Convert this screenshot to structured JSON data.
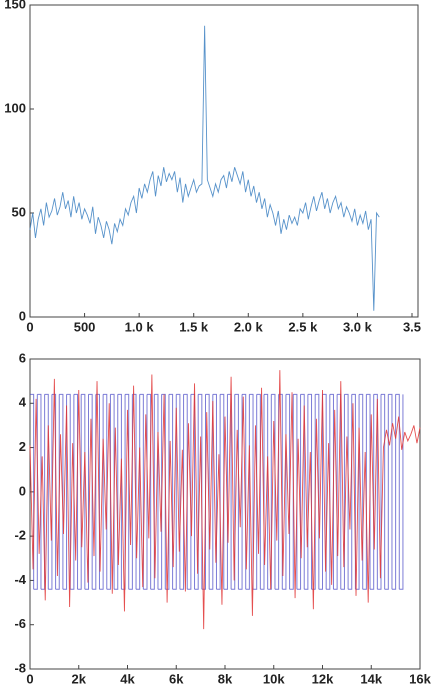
{
  "chart_data": [
    {
      "type": "line",
      "x": [
        0,
        25,
        50,
        75,
        100,
        125,
        150,
        175,
        200,
        225,
        250,
        275,
        300,
        325,
        350,
        375,
        400,
        425,
        450,
        475,
        500,
        525,
        550,
        575,
        600,
        625,
        650,
        675,
        700,
        725,
        750,
        775,
        800,
        825,
        850,
        875,
        900,
        925,
        950,
        975,
        1000,
        1025,
        1050,
        1075,
        1100,
        1125,
        1150,
        1175,
        1200,
        1225,
        1250,
        1275,
        1300,
        1325,
        1350,
        1375,
        1400,
        1425,
        1450,
        1475,
        1500,
        1525,
        1550,
        1575,
        1600,
        1625,
        1650,
        1675,
        1700,
        1725,
        1750,
        1775,
        1800,
        1825,
        1850,
        1875,
        1900,
        1925,
        1950,
        1975,
        2000,
        2025,
        2050,
        2075,
        2100,
        2125,
        2150,
        2175,
        2200,
        2225,
        2250,
        2275,
        2300,
        2325,
        2350,
        2375,
        2400,
        2425,
        2450,
        2475,
        2500,
        2525,
        2550,
        2575,
        2600,
        2625,
        2650,
        2675,
        2700,
        2725,
        2750,
        2775,
        2800,
        2825,
        2850,
        2875,
        2900,
        2925,
        2950,
        2975,
        3000,
        3025,
        3050,
        3075,
        3100,
        3125,
        3150,
        3175,
        3200
      ],
      "series": [
        {
          "color": "#3a7fc1",
          "values": [
            42,
            50,
            38,
            47,
            52,
            44,
            55,
            48,
            51,
            57,
            49,
            53,
            60,
            52,
            56,
            48,
            58,
            50,
            55,
            47,
            52,
            49,
            45,
            53,
            40,
            48,
            44,
            38,
            46,
            42,
            35,
            45,
            41,
            47,
            44,
            52,
            49,
            55,
            58,
            50,
            62,
            57,
            64,
            60,
            66,
            70,
            58,
            68,
            63,
            72,
            65,
            69,
            66,
            70,
            60,
            67,
            55,
            64,
            58,
            62,
            66,
            60,
            63,
            64,
            140,
            66,
            62,
            58,
            64,
            60,
            66,
            68,
            62,
            70,
            65,
            72,
            68,
            64,
            70,
            60,
            66,
            58,
            63,
            55,
            60,
            52,
            57,
            48,
            54,
            50,
            44,
            51,
            40,
            47,
            42,
            49,
            45,
            48,
            44,
            52,
            50,
            55,
            47,
            53,
            58,
            51,
            56,
            60,
            52,
            57,
            50,
            55,
            58,
            52,
            55,
            48,
            53,
            50,
            46,
            52,
            44,
            49,
            45,
            51,
            42,
            47,
            3,
            50,
            48
          ]
        }
      ],
      "xlim": [
        0,
        3500
      ],
      "ylim": [
        0,
        150
      ],
      "xticks": [
        0,
        500,
        {
          "value": 1000,
          "label": "1.0 k"
        },
        {
          "value": 1500,
          "label": "1.5 k"
        },
        {
          "value": 2000,
          "label": "2.0 k"
        },
        {
          "value": 2500,
          "label": "2.5 k"
        },
        {
          "value": 3000,
          "label": "3.0 k"
        },
        {
          "value": 3500,
          "label": "3.5"
        }
      ],
      "yticks": [
        0,
        50,
        100,
        150
      ]
    },
    {
      "type": "line",
      "series": [
        {
          "color": "#5050c8",
          "drawstyle": "steps-post",
          "x": [
            0,
            150,
            300,
            450,
            600,
            750,
            900,
            1050,
            1200,
            1350,
            1500,
            1650,
            1800,
            1950,
            2100,
            2250,
            2400,
            2550,
            2700,
            2850,
            3000,
            3150,
            3300,
            3450,
            3600,
            3750,
            3900,
            4050,
            4200,
            4350,
            4500,
            4650,
            4800,
            4950,
            5100,
            5250,
            5400,
            5550,
            5700,
            5850,
            6000,
            6150,
            6300,
            6450,
            6600,
            6750,
            6900,
            7050,
            7200,
            7350,
            7500,
            7650,
            7800,
            7950,
            8100,
            8250,
            8400,
            8550,
            8700,
            8850,
            9000,
            9150,
            9300,
            9450,
            9600,
            9750,
            9900,
            10050,
            10200,
            10350,
            10500,
            10650,
            10800,
            10950,
            11100,
            11250,
            11400,
            11550,
            11700,
            11850,
            12000,
            12150,
            12300,
            12450,
            12600,
            12750,
            12900,
            13050,
            13200,
            13350,
            13500,
            13650,
            13800,
            13950,
            14100,
            14250,
            14400,
            14550,
            14700,
            14850,
            15000,
            15150,
            15300
          ],
          "values": [
            4.4,
            -4.4,
            4.4,
            -4.4,
            4.4,
            -4.4,
            4.4,
            -4.4,
            4.4,
            -4.4,
            4.4,
            -4.4,
            4.4,
            -4.4,
            4.4,
            -4.4,
            4.4,
            -4.4,
            4.4,
            -4.4,
            4.4,
            -4.4,
            4.4,
            -4.4,
            4.4,
            -4.4,
            4.4,
            -4.4,
            4.4,
            -4.4,
            4.4,
            -4.4,
            4.4,
            -4.4,
            4.4,
            -4.4,
            4.4,
            -4.4,
            4.4,
            -4.4,
            4.4,
            -4.4,
            4.4,
            -4.4,
            4.4,
            -4.4,
            4.4,
            -4.4,
            4.4,
            -4.4,
            4.4,
            -4.4,
            4.4,
            -4.4,
            4.4,
            -4.4,
            4.4,
            -4.4,
            4.4,
            -4.4,
            4.4,
            -4.4,
            4.4,
            -4.4,
            4.4,
            -4.4,
            4.4,
            -4.4,
            4.4,
            -4.4,
            4.4,
            -4.4,
            4.4,
            -4.4,
            4.4,
            -4.4,
            4.4,
            -4.4,
            4.4,
            -4.4,
            4.4,
            -4.4,
            4.4,
            -4.4,
            4.4,
            -4.4,
            4.4,
            -4.4,
            4.4,
            -4.4,
            4.4,
            -4.4,
            4.4,
            -4.4,
            4.4,
            -4.4,
            4.4,
            -4.4,
            4.4,
            -4.4,
            4.4,
            -4.4,
            4.4
          ]
        },
        {
          "color": "#e03030",
          "x": [
            0,
            125,
            250,
            375,
            500,
            625,
            750,
            875,
            1000,
            1125,
            1250,
            1375,
            1500,
            1625,
            1750,
            1875,
            2000,
            2125,
            2250,
            2375,
            2500,
            2625,
            2750,
            2875,
            3000,
            3125,
            3250,
            3375,
            3500,
            3625,
            3750,
            3875,
            4000,
            4125,
            4250,
            4375,
            4500,
            4625,
            4750,
            4875,
            5000,
            5125,
            5250,
            5375,
            5500,
            5625,
            5750,
            5875,
            6000,
            6125,
            6250,
            6375,
            6500,
            6625,
            6750,
            6875,
            7000,
            7125,
            7250,
            7375,
            7500,
            7625,
            7750,
            7875,
            8000,
            8125,
            8250,
            8375,
            8500,
            8625,
            8750,
            8875,
            9000,
            9125,
            9250,
            9375,
            9500,
            9625,
            9750,
            9875,
            10000,
            10125,
            10250,
            10375,
            10500,
            10625,
            10750,
            10875,
            11000,
            11125,
            11250,
            11375,
            11500,
            11625,
            11750,
            11875,
            12000,
            12125,
            12250,
            12375,
            12500,
            12625,
            12750,
            12875,
            13000,
            13125,
            13250,
            13375,
            13500,
            13625,
            13750,
            13875,
            14000,
            14125,
            14250,
            14375,
            14500,
            14625,
            14750,
            14875,
            15000,
            15125,
            15250,
            15375,
            15500,
            15625,
            15750,
            15875,
            16000
          ],
          "values": [
            2.1,
            -3.5,
            4.2,
            -2.8,
            1.6,
            -4.9,
            3.0,
            -2.2,
            5.1,
            -3.8,
            2.6,
            -1.9,
            3.9,
            -5.2,
            2.2,
            -3.1,
            4.6,
            -2.5,
            1.8,
            -4.1,
            3.3,
            -2.9,
            5.0,
            -3.6,
            2.4,
            -1.7,
            4.0,
            -4.6,
            2.9,
            -3.3,
            1.5,
            -5.4,
            3.7,
            -2.4,
            4.8,
            -3.0,
            2.0,
            -4.3,
            3.5,
            -2.1,
            5.3,
            -3.9,
            2.7,
            -1.8,
            4.4,
            -5.0,
            2.3,
            -3.4,
            3.8,
            -2.7,
            1.9,
            -4.5,
            3.1,
            -2.0,
            4.9,
            -3.7,
            2.5,
            -6.2,
            3.6,
            -2.6,
            4.1,
            -3.2,
            1.7,
            -5.1,
            3.4,
            -2.3,
            5.2,
            -4.0,
            2.8,
            -1.6,
            4.3,
            -3.5,
            2.1,
            -5.6,
            3.0,
            -2.8,
            4.7,
            -3.3,
            1.6,
            -4.4,
            3.2,
            -2.2,
            5.5,
            -3.8,
            2.6,
            -1.9,
            4.5,
            -4.8,
            2.4,
            -3.0,
            3.9,
            -2.5,
            1.8,
            -5.3,
            3.3,
            -2.1,
            4.6,
            -3.6,
            2.2,
            -4.2,
            3.7,
            -2.9,
            5.0,
            -3.4,
            2.5,
            -1.7,
            4.0,
            -4.7,
            2.9,
            -3.1,
            1.8,
            -5.0,
            3.5,
            -2.6,
            4.2,
            -3.9,
            2.0,
            2.8,
            2.1,
            3.1,
            2.4,
            3.4,
            1.9,
            2.7,
            2.3,
            2.6,
            3.0,
            2.2,
            2.9
          ]
        }
      ],
      "xlim": [
        0,
        16000
      ],
      "ylim": [
        -8,
        6
      ],
      "xticks": [
        0,
        {
          "value": 2000,
          "label": "2k"
        },
        {
          "value": 4000,
          "label": "4k"
        },
        {
          "value": 6000,
          "label": "6k"
        },
        {
          "value": 8000,
          "label": "8k"
        },
        {
          "value": 10000,
          "label": "10k"
        },
        {
          "value": 12000,
          "label": "12k"
        },
        {
          "value": 14000,
          "label": "14k"
        },
        {
          "value": 16000,
          "label": "16k"
        }
      ],
      "yticks": [
        -8,
        -6,
        -4,
        -2,
        0,
        2,
        4,
        6
      ]
    }
  ]
}
